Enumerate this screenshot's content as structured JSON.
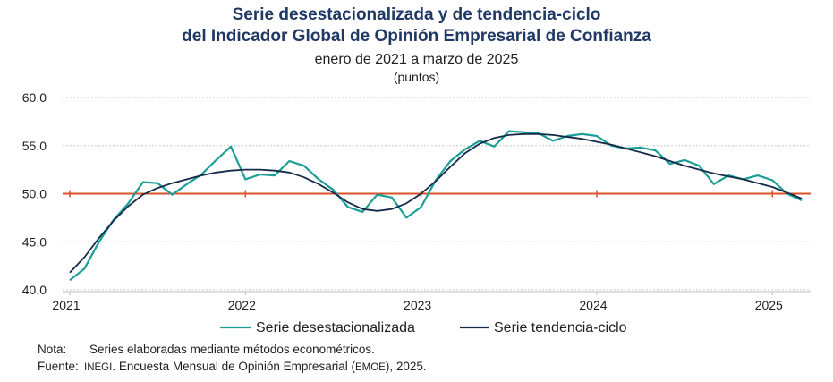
{
  "title": {
    "line1": "Serie desestacionalizada y de tendencia-ciclo",
    "line2": "del Indicador Global de Opinión Empresarial de Confianza"
  },
  "subtitle": "enero de 2021 a marzo de 2025",
  "units": "(puntos)",
  "notes": {
    "note_label": "Nota:",
    "note_text": "Series elaboradas mediante métodos econométricos.",
    "source_label": "Fuente:",
    "source_org": "INEGI",
    "source_text_a": ". Encuesta Mensual de Opinión Empresarial (",
    "source_abbr": "EMOE",
    "source_text_b": "), 2025."
  },
  "colors": {
    "seasonal": "#1a9e96",
    "trend": "#142b4a",
    "reference": "#d9532a",
    "grid": "#c8c8c8",
    "title": "#1f3864"
  },
  "chart_data": {
    "type": "line",
    "ylim": [
      40.0,
      60.0
    ],
    "yticks": [
      "40.0",
      "45.0",
      "50.0",
      "55.0",
      "60.0"
    ],
    "xticks": [
      "2021",
      "2022",
      "2023",
      "2024",
      "2025"
    ],
    "x_start": "2021-01",
    "reference_line": 50.0,
    "grid": true,
    "legend_position": "bottom",
    "series": [
      {
        "name": "Serie desestacionalizada",
        "values": [
          41.0,
          42.2,
          45.0,
          47.3,
          49.0,
          51.2,
          51.1,
          49.9,
          51.0,
          52.0,
          53.5,
          54.9,
          51.5,
          52.0,
          51.9,
          53.4,
          52.9,
          51.5,
          50.4,
          48.6,
          48.1,
          49.9,
          49.6,
          47.5,
          48.6,
          51.4,
          53.4,
          54.6,
          55.5,
          54.9,
          56.5,
          56.4,
          56.3,
          55.5,
          56.0,
          56.2,
          56.0,
          55.0,
          54.7,
          54.8,
          54.5,
          53.1,
          53.5,
          52.9,
          51.0,
          51.9,
          51.5,
          51.9,
          51.4,
          50.0,
          49.3
        ]
      },
      {
        "name": "Serie tendencia-ciclo",
        "values": [
          41.8,
          43.4,
          45.4,
          47.2,
          48.7,
          49.9,
          50.6,
          51.1,
          51.5,
          51.9,
          52.2,
          52.4,
          52.5,
          52.5,
          52.4,
          52.2,
          51.7,
          51.0,
          50.1,
          49.1,
          48.4,
          48.2,
          48.4,
          49.0,
          50.0,
          51.3,
          52.8,
          54.2,
          55.2,
          55.8,
          56.1,
          56.2,
          56.2,
          56.1,
          55.9,
          55.7,
          55.4,
          55.1,
          54.7,
          54.3,
          53.9,
          53.4,
          52.9,
          52.5,
          52.1,
          51.8,
          51.5,
          51.1,
          50.7,
          50.1,
          49.5
        ]
      }
    ]
  }
}
